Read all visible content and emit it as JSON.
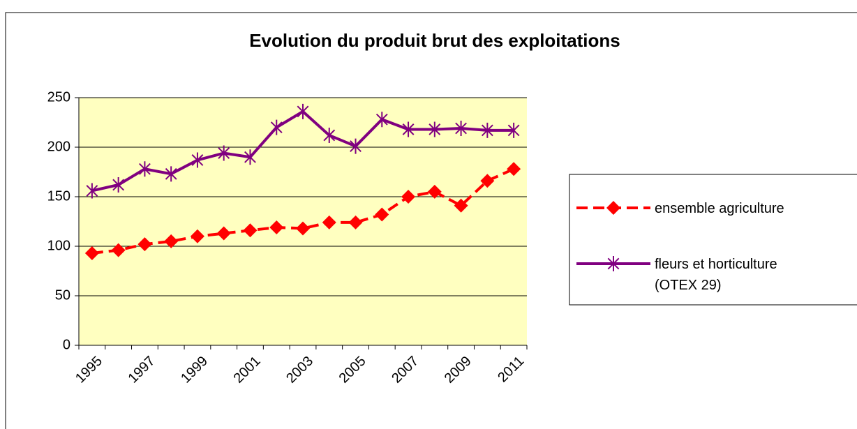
{
  "chart_data": {
    "type": "line",
    "title": "Evolution du produit brut des exploitations",
    "categories": [
      "1995",
      null,
      "1997",
      null,
      "1999",
      null,
      "2001",
      null,
      "2003",
      null,
      "2005",
      null,
      "2007",
      null,
      "2009",
      null,
      "2011"
    ],
    "series": [
      {
        "name": "ensemble agriculture",
        "color": "#ff0000",
        "marker": "diamond",
        "dashed": true,
        "values": [
          93,
          96,
          102,
          105,
          110,
          113,
          116,
          119,
          118,
          124,
          124,
          132,
          150,
          155,
          141,
          166,
          178
        ]
      },
      {
        "name": "fleurs et horticulture (OTEX 29)",
        "color": "#800080",
        "marker": "asterisk",
        "dashed": false,
        "values": [
          156,
          162,
          178,
          173,
          187,
          194,
          190,
          220,
          236,
          212,
          201,
          228,
          218,
          218,
          219,
          217,
          217
        ]
      }
    ],
    "ylim": [
      0,
      250
    ],
    "yticks": [
      0,
      50,
      100,
      150,
      200,
      250
    ],
    "grid": true,
    "plot_background": "#ffffc0",
    "legend": "right"
  }
}
